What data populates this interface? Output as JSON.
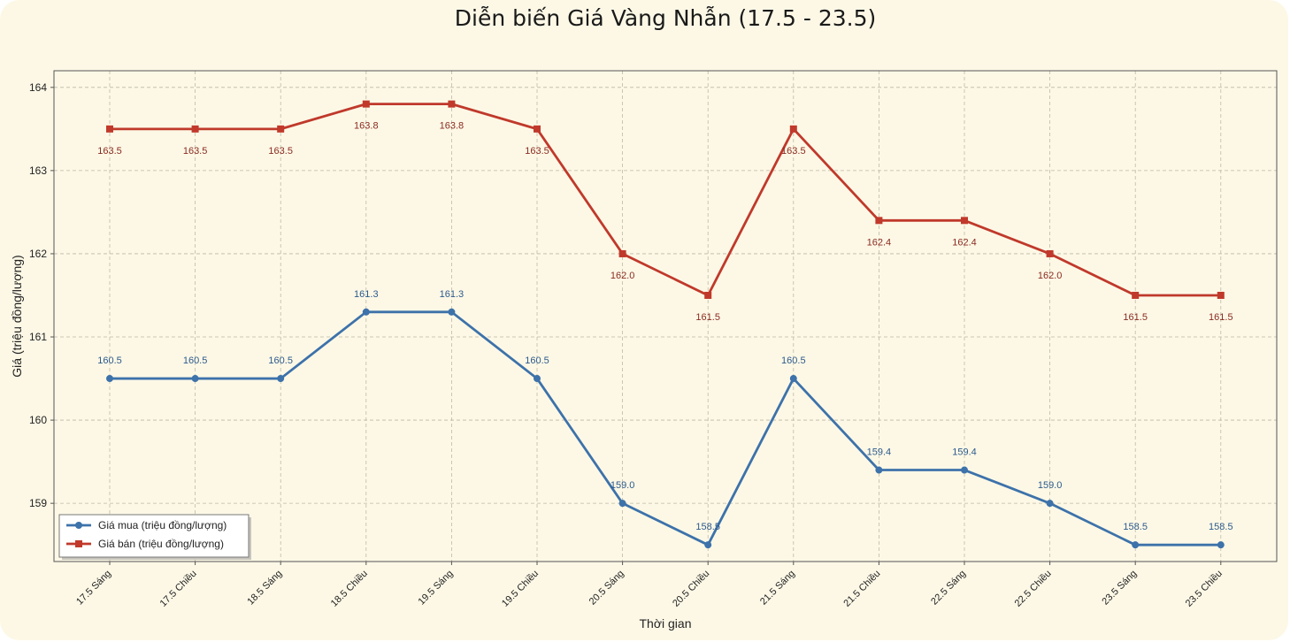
{
  "chart_data": {
    "type": "line",
    "title": "Diễn biến Giá Vàng Nhẫn (17.5 - 23.5)",
    "xlabel": "Thời gian",
    "ylabel": "Giá (triệu đồng/lượng)",
    "categories": [
      "17.5 Sáng",
      "17.5 Chiều",
      "18.5 Sáng",
      "18.5 Chiều",
      "19.5 Sáng",
      "19.5 Chiều",
      "20.5 Sáng",
      "20.5 Chiều",
      "21.5 Sáng",
      "21.5 Chiều",
      "22.5 Sáng",
      "22.5 Chiều",
      "23.5 Sáng",
      "23.5 Chiều"
    ],
    "ylim": [
      158.3,
      164.2
    ],
    "yticks": [
      159,
      160,
      161,
      162,
      163,
      164
    ],
    "grid": true,
    "legend_position": "bottom-left",
    "series": [
      {
        "name": "Giá mua (triệu đồng/lượng)",
        "values": [
          160.5,
          160.5,
          160.5,
          161.3,
          161.3,
          160.5,
          159.0,
          158.5,
          160.5,
          159.4,
          159.4,
          159.0,
          158.5,
          158.5
        ],
        "color": "#3d72aa",
        "marker": "circle",
        "label_position": "above"
      },
      {
        "name": "Giá bán (triệu đồng/lượng)",
        "values": [
          163.5,
          163.5,
          163.5,
          163.8,
          163.8,
          163.5,
          162.0,
          161.5,
          163.5,
          162.4,
          162.4,
          162.0,
          161.5,
          161.5
        ],
        "color": "#c0392b",
        "marker": "square",
        "label_position": "below"
      }
    ]
  }
}
